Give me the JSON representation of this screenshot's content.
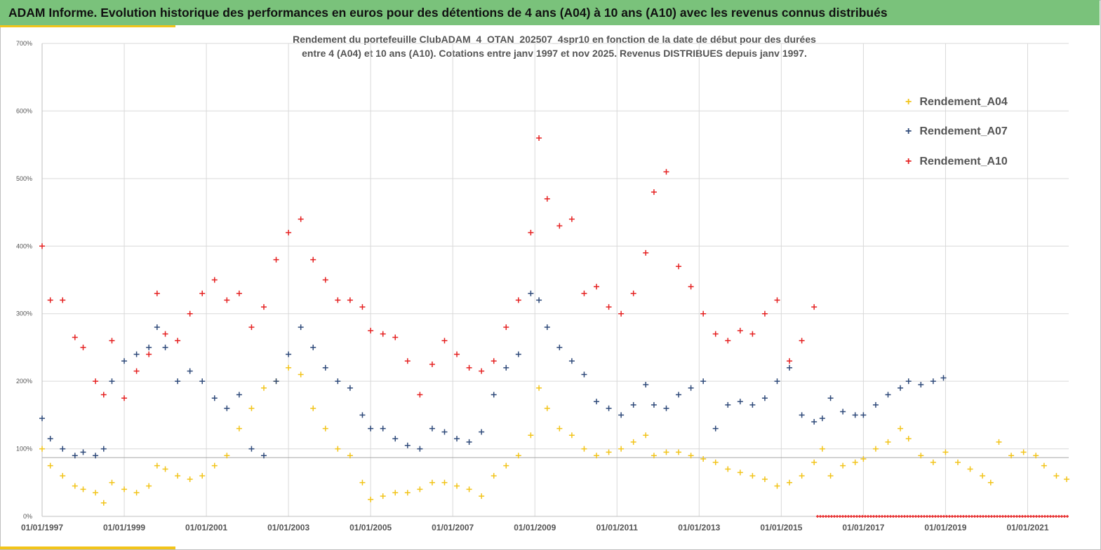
{
  "header": {
    "title": "ADAM Informe. Evolution historique des performances en euros pour des détentions de 4 ans (A04) à 10 ans (A10) avec les revenus connus distribués"
  },
  "chart_data": {
    "type": "scatter",
    "title_line1": "Rendement du portefeuille ClubADAM_4_OTAN_202507_4spr10  en fonction de la date de début pour des durées",
    "title_line2": "entre 4 (A04) et 10 ans (A10). Cotations entre janv 1997 et nov 2025. Revenus DISTRIBUES depuis janv 1997.",
    "xlabel": "",
    "ylabel": "",
    "xlim": [
      1997.0,
      2022.0
    ],
    "ylim": [
      0,
      700
    ],
    "y_ticks": [
      "0%",
      "100%",
      "200%",
      "300%",
      "400%",
      "500%",
      "600%",
      "700%"
    ],
    "y_tick_values": [
      0,
      100,
      200,
      300,
      400,
      500,
      600,
      700
    ],
    "x_ticks": [
      "01/01/1997",
      "01/01/1999",
      "01/01/2001",
      "01/01/2003",
      "01/01/2005",
      "01/01/2007",
      "01/01/2009",
      "01/01/2011",
      "01/01/2013",
      "01/01/2015",
      "01/01/2017",
      "01/01/2019",
      "01/01/2021"
    ],
    "x_tick_values": [
      1997,
      1999,
      2001,
      2003,
      2005,
      2007,
      2009,
      2011,
      2013,
      2015,
      2017,
      2019,
      2021
    ],
    "reference_line": 87,
    "grid": true,
    "legend_position": "top-right",
    "series": [
      {
        "name": "Rendement_A04",
        "color": "#f2c41a",
        "x": [
          1997.0,
          1997.2,
          1997.5,
          1997.8,
          1998.0,
          1998.3,
          1998.5,
          1998.7,
          1999.0,
          1999.3,
          1999.6,
          1999.8,
          2000.0,
          2000.3,
          2000.6,
          2000.9,
          2001.2,
          2001.5,
          2001.8,
          2002.1,
          2002.4,
          2002.7,
          2003.0,
          2003.3,
          2003.6,
          2003.9,
          2004.2,
          2004.5,
          2004.8,
          2005.0,
          2005.3,
          2005.6,
          2005.9,
          2006.2,
          2006.5,
          2006.8,
          2007.1,
          2007.4,
          2007.7,
          2008.0,
          2008.3,
          2008.6,
          2008.9,
          2009.1,
          2009.3,
          2009.6,
          2009.9,
          2010.2,
          2010.5,
          2010.8,
          2011.1,
          2011.4,
          2011.7,
          2011.9,
          2012.2,
          2012.5,
          2012.8,
          2013.1,
          2013.4,
          2013.7,
          2014.0,
          2014.3,
          2014.6,
          2014.9,
          2015.2,
          2015.5,
          2015.8,
          2016.0,
          2016.2,
          2016.5,
          2016.8,
          2017.0,
          2017.3,
          2017.6,
          2017.9,
          2018.1,
          2018.4,
          2018.7,
          2019.0,
          2019.3,
          2019.6,
          2019.9,
          2020.1,
          2020.3,
          2020.6,
          2020.9,
          2021.2,
          2021.4,
          2021.7,
          2021.95
        ],
        "y": [
          100,
          75,
          60,
          45,
          40,
          35,
          20,
          50,
          40,
          35,
          45,
          75,
          70,
          60,
          55,
          60,
          75,
          90,
          130,
          160,
          190,
          200,
          220,
          210,
          160,
          130,
          100,
          90,
          50,
          25,
          30,
          35,
          35,
          40,
          50,
          50,
          45,
          40,
          30,
          60,
          75,
          90,
          120,
          190,
          160,
          130,
          120,
          100,
          90,
          95,
          100,
          110,
          120,
          90,
          95,
          95,
          90,
          85,
          80,
          70,
          65,
          60,
          55,
          45,
          50,
          60,
          80,
          100,
          60,
          75,
          80,
          85,
          100,
          110,
          130,
          115,
          90,
          80,
          95,
          80,
          70,
          60,
          50,
          110,
          90,
          95,
          90,
          75,
          60,
          55
        ]
      },
      {
        "name": "Rendement_A07",
        "color": "#2f4a7a",
        "x": [
          1997.0,
          1997.2,
          1997.5,
          1997.8,
          1998.0,
          1998.3,
          1998.5,
          1998.7,
          1999.0,
          1999.3,
          1999.6,
          1999.8,
          2000.0,
          2000.3,
          2000.6,
          2000.9,
          2001.2,
          2001.5,
          2001.8,
          2002.1,
          2002.4,
          2002.7,
          2003.0,
          2003.3,
          2003.6,
          2003.9,
          2004.2,
          2004.5,
          2004.8,
          2005.0,
          2005.3,
          2005.6,
          2005.9,
          2006.2,
          2006.5,
          2006.8,
          2007.1,
          2007.4,
          2007.7,
          2008.0,
          2008.3,
          2008.6,
          2008.9,
          2009.1,
          2009.3,
          2009.6,
          2009.9,
          2010.2,
          2010.5,
          2010.8,
          2011.1,
          2011.4,
          2011.7,
          2011.9,
          2012.2,
          2012.5,
          2012.8,
          2013.1,
          2013.4,
          2013.7,
          2014.0,
          2014.3,
          2014.6,
          2014.9,
          2015.2,
          2015.5,
          2015.8,
          2016.0,
          2016.2,
          2016.5,
          2016.8,
          2017.0,
          2017.3,
          2017.6,
          2017.9,
          2018.1,
          2018.4,
          2018.7,
          2018.95
        ],
        "y": [
          145,
          115,
          100,
          90,
          95,
          90,
          100,
          200,
          230,
          240,
          250,
          280,
          250,
          200,
          215,
          200,
          175,
          160,
          180,
          100,
          90,
          200,
          240,
          280,
          250,
          220,
          200,
          190,
          150,
          130,
          130,
          115,
          105,
          100,
          130,
          125,
          115,
          110,
          125,
          180,
          220,
          240,
          330,
          320,
          280,
          250,
          230,
          210,
          170,
          160,
          150,
          165,
          195,
          165,
          160,
          180,
          190,
          200,
          130,
          165,
          170,
          165,
          175,
          200,
          220,
          150,
          140,
          145,
          175,
          155,
          150,
          150,
          165,
          180,
          190,
          200,
          195,
          200,
          205
        ]
      },
      {
        "name": "Rendement_A10",
        "color": "#e52222",
        "x": [
          1997.0,
          1997.2,
          1997.5,
          1997.8,
          1998.0,
          1998.3,
          1998.5,
          1998.7,
          1999.0,
          1999.3,
          1999.6,
          1999.8,
          2000.0,
          2000.3,
          2000.6,
          2000.9,
          2001.2,
          2001.5,
          2001.8,
          2002.1,
          2002.4,
          2002.7,
          2003.0,
          2003.3,
          2003.6,
          2003.9,
          2004.2,
          2004.5,
          2004.8,
          2005.0,
          2005.3,
          2005.6,
          2005.9,
          2006.2,
          2006.5,
          2006.8,
          2007.1,
          2007.4,
          2007.7,
          2008.0,
          2008.3,
          2008.6,
          2008.9,
          2009.1,
          2009.3,
          2009.6,
          2009.9,
          2010.2,
          2010.5,
          2010.8,
          2011.1,
          2011.4,
          2011.7,
          2011.9,
          2012.2,
          2012.5,
          2012.8,
          2013.1,
          2013.4,
          2013.7,
          2014.0,
          2014.3,
          2014.6,
          2014.9,
          2015.2,
          2015.5,
          2015.8
        ],
        "y": [
          400,
          320,
          320,
          265,
          250,
          200,
          180,
          260,
          175,
          215,
          240,
          330,
          270,
          260,
          300,
          330,
          350,
          320,
          330,
          280,
          310,
          380,
          420,
          440,
          380,
          350,
          320,
          320,
          310,
          275,
          270,
          265,
          230,
          180,
          225,
          260,
          240,
          220,
          215,
          230,
          280,
          320,
          420,
          560,
          470,
          430,
          440,
          330,
          340,
          310,
          300,
          330,
          390,
          480,
          510,
          370,
          340,
          300,
          270,
          260,
          275,
          270,
          300,
          320,
          230,
          260,
          310
        ]
      }
    ]
  }
}
